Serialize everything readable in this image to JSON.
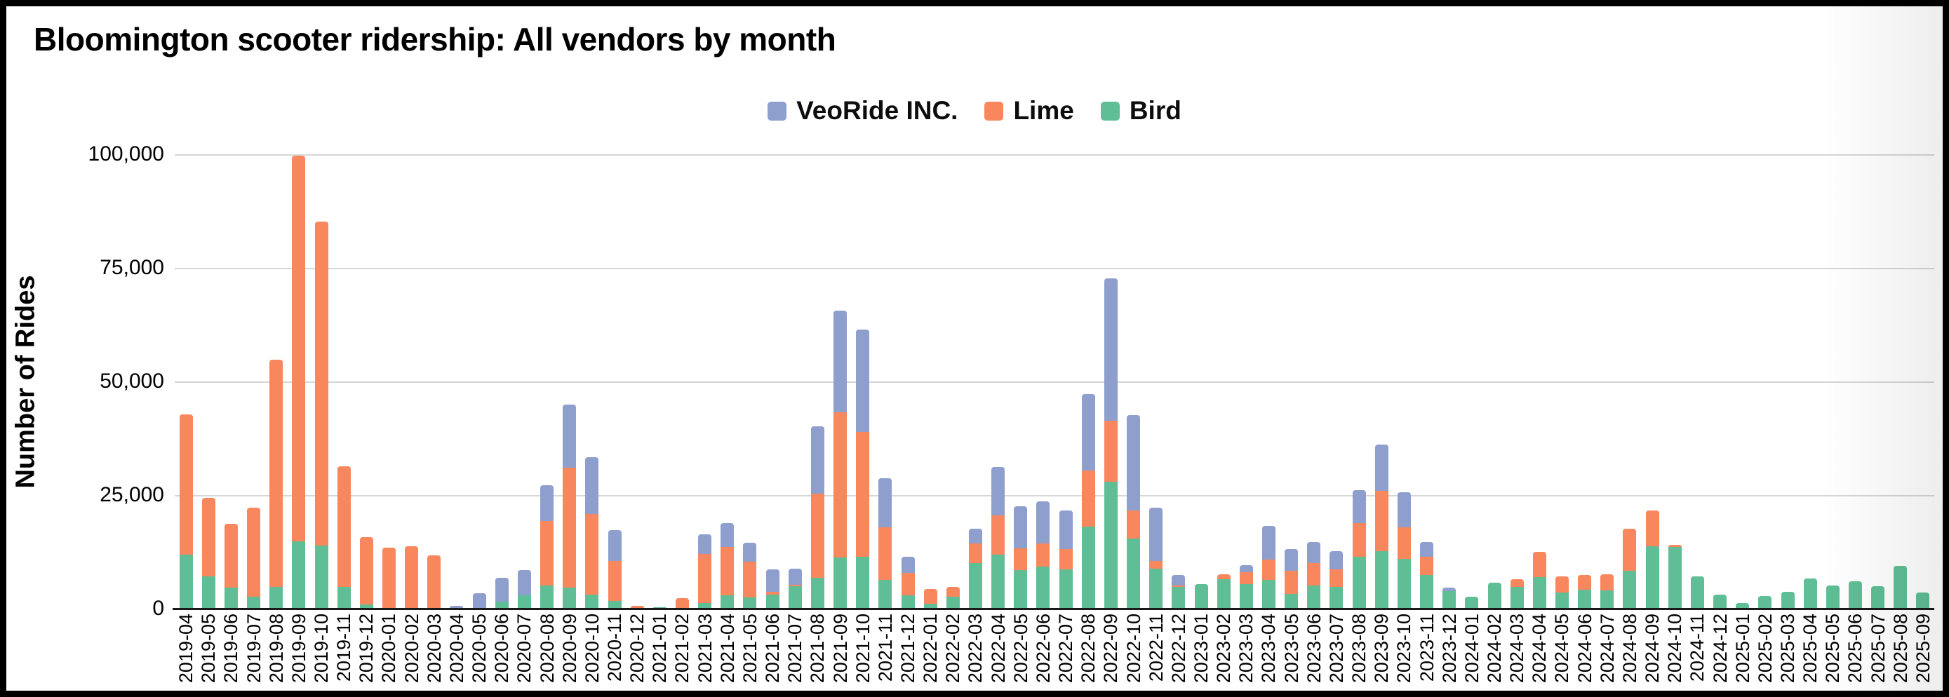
{
  "title": "Bloomington scooter ridership: All vendors by month",
  "legend": [
    {
      "label": "VeoRide INC.",
      "color": "#8E9ECD"
    },
    {
      "label": "Lime",
      "color": "#F9875D"
    },
    {
      "label": "Bird",
      "color": "#5FBE95"
    }
  ],
  "y_axis": {
    "title": "Number of Rides",
    "ticks": [
      {
        "label": "100,000",
        "value": 100000
      },
      {
        "label": "75,000",
        "value": 75000
      },
      {
        "label": "50,000",
        "value": 50000
      },
      {
        "label": "25,000",
        "value": 25000
      },
      {
        "label": "0",
        "value": 0
      }
    ]
  },
  "chart_data": {
    "type": "bar",
    "stacked": true,
    "title": "Bloomington scooter ridership: All vendors by month",
    "xlabel": "",
    "ylabel": "Number of Rides",
    "ylim": [
      0,
      100000
    ],
    "grid": true,
    "legend_position": "top-center",
    "stack_order_bottom_to_top": [
      "Bird",
      "Lime",
      "VeoRide INC."
    ],
    "categories": [
      "2019-04",
      "2019-05",
      "2019-06",
      "2019-07",
      "2019-08",
      "2019-09",
      "2019-10",
      "2019-11",
      "2019-12",
      "2020-01",
      "2020-02",
      "2020-03",
      "2020-04",
      "2020-05",
      "2020-06",
      "2020-07",
      "2020-08",
      "2020-09",
      "2020-10",
      "2020-11",
      "2020-12",
      "2021-01",
      "2021-02",
      "2021-03",
      "2021-04",
      "2021-05",
      "2021-06",
      "2021-07",
      "2021-08",
      "2021-09",
      "2021-10",
      "2021-11",
      "2021-12",
      "2022-01",
      "2022-02",
      "2022-03",
      "2022-04",
      "2022-05",
      "2022-06",
      "2022-07",
      "2022-08",
      "2022-09",
      "2022-10",
      "2022-11",
      "2022-12",
      "2023-01",
      "2023-02",
      "2023-03",
      "2023-04",
      "2023-05",
      "2023-06",
      "2023-07",
      "2023-08",
      "2023-09",
      "2023-10",
      "2023-11",
      "2023-12",
      "2024-01",
      "2024-02",
      "2024-03",
      "2024-04",
      "2024-05",
      "2024-06",
      "2024-07",
      "2024-08",
      "2024-09",
      "2024-10",
      "2024-11",
      "2024-12",
      "2025-01",
      "2025-02",
      "2025-03",
      "2025-04",
      "2025-05",
      "2025-06",
      "2025-07",
      "2025-08",
      "2025-09"
    ],
    "series": [
      {
        "name": "VeoRide INC.",
        "values": [
          0,
          0,
          0,
          0,
          0,
          0,
          0,
          0,
          0,
          0,
          0,
          0,
          400,
          3300,
          5200,
          5600,
          7800,
          14000,
          12500,
          6900,
          0,
          0,
          0,
          4300,
          5200,
          4100,
          5000,
          3500,
          14900,
          22400,
          22500,
          10800,
          3500,
          0,
          0,
          3300,
          10700,
          9200,
          9300,
          8500,
          16800,
          31300,
          21000,
          11700,
          2300,
          0,
          0,
          1500,
          7400,
          4800,
          4600,
          4000,
          7300,
          10200,
          7800,
          3200,
          800,
          0,
          0,
          0,
          0,
          0,
          0,
          0,
          0,
          0,
          0,
          0,
          0,
          0,
          0,
          0,
          0,
          0,
          0,
          0,
          0,
          0
        ]
      },
      {
        "name": "Lime",
        "values": [
          30800,
          17400,
          14100,
          19500,
          50000,
          84900,
          71300,
          26600,
          14900,
          13300,
          13600,
          11500,
          0,
          0,
          0,
          0,
          14200,
          26400,
          17700,
          8700,
          500,
          0,
          2100,
          10800,
          10600,
          7900,
          500,
          300,
          18400,
          32000,
          27500,
          11500,
          5000,
          3300,
          2200,
          4400,
          8500,
          4700,
          5100,
          4500,
          12300,
          13500,
          6200,
          1600,
          200,
          0,
          1000,
          2600,
          4400,
          5100,
          4900,
          3900,
          7400,
          13300,
          6900,
          4000,
          0,
          0,
          0,
          1800,
          5500,
          3600,
          3200,
          3600,
          9300,
          7900,
          500,
          0,
          0,
          0,
          0,
          0,
          0,
          0,
          0,
          0,
          0,
          0
        ]
      },
      {
        "name": "Bird",
        "values": [
          11800,
          6900,
          4400,
          2500,
          4600,
          14600,
          13700,
          4600,
          700,
          0,
          0,
          0,
          0,
          0,
          1400,
          2700,
          5000,
          4400,
          3000,
          1600,
          0,
          150,
          0,
          1100,
          2800,
          2300,
          3000,
          4800,
          6700,
          11100,
          11200,
          6200,
          2700,
          900,
          2500,
          9800,
          11800,
          8400,
          9100,
          8500,
          17900,
          27700,
          15300,
          8700,
          4700,
          5300,
          6400,
          5300,
          6200,
          3100,
          5000,
          4600,
          11300,
          12500,
          10800,
          7300,
          3700,
          2500,
          5500,
          4600,
          6800,
          3400,
          4000,
          3800,
          8200,
          13600,
          13400,
          7000,
          3000,
          1100,
          2600,
          3500,
          6500,
          5000,
          5800,
          4800,
          9300,
          3400
        ]
      }
    ]
  }
}
